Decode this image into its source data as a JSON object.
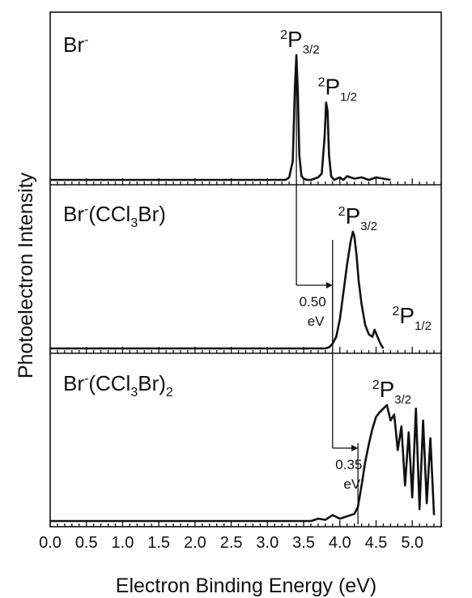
{
  "chart_data": {
    "type": "line",
    "xlabel": "Electron Binding Energy (eV)",
    "ylabel": "Photoelectron Intensity",
    "xlim": [
      0.0,
      5.4
    ],
    "x_ticks": [
      "0.0",
      "0.5",
      "1.0",
      "1.5",
      "2.0",
      "2.5",
      "3.0",
      "3.5",
      "4.0",
      "4.5",
      "5.0"
    ],
    "panels": [
      {
        "label": {
          "pre": "Br",
          "sup": "-",
          "post": ""
        },
        "series": {
          "x": [
            0.0,
            3.25,
            3.3,
            3.35,
            3.38,
            3.4,
            3.42,
            3.44,
            3.47,
            3.5,
            3.55,
            3.6,
            3.65,
            3.7,
            3.75,
            3.79,
            3.81,
            3.83,
            3.85,
            3.88,
            3.92,
            4.0,
            4.05,
            4.1,
            4.2,
            4.3,
            4.4,
            4.5,
            4.6,
            4.7
          ],
          "y": [
            0.0,
            0.0,
            0.02,
            0.15,
            0.75,
            1.0,
            0.7,
            0.2,
            0.03,
            0.01,
            0.0,
            0.0,
            0.01,
            0.02,
            0.05,
            0.35,
            0.62,
            0.55,
            0.2,
            0.03,
            0.0,
            0.02,
            0.0,
            0.03,
            0.01,
            0.02,
            0.0,
            0.02,
            0.01,
            0.0
          ],
          "ymax": 1.0
        },
        "peaks": [
          {
            "x": 3.4,
            "y": 1.0,
            "num": "2",
            "sym": "P",
            "sub": "3/2"
          },
          {
            "x": 3.83,
            "y": 0.62,
            "num": "2",
            "sym": "P",
            "sub": "1/2"
          }
        ]
      },
      {
        "label": {
          "pre": "Br",
          "sup": "-",
          "post": "(CCl",
          "sub": "3",
          "tail": "Br)"
        },
        "series": {
          "x": [
            0.0,
            3.8,
            3.85,
            3.9,
            3.95,
            4.0,
            4.05,
            4.1,
            4.15,
            4.18,
            4.2,
            4.23,
            4.26,
            4.3,
            4.35,
            4.4,
            4.45,
            4.48,
            4.52,
            4.56,
            4.6
          ],
          "y": [
            0.0,
            0.0,
            0.01,
            0.04,
            0.1,
            0.25,
            0.48,
            0.72,
            0.92,
            1.0,
            0.96,
            0.8,
            0.58,
            0.38,
            0.2,
            0.12,
            0.1,
            0.16,
            0.1,
            0.04,
            0.0
          ],
          "ymax": 1.0
        },
        "peaks": [
          {
            "x": 4.2,
            "y": 1.0,
            "num": "2",
            "sym": "P",
            "sub": "3/2"
          },
          {
            "x": 4.5,
            "y": 0.16,
            "num": "2",
            "sym": "P",
            "sub": "1/2"
          }
        ],
        "shift": {
          "from": 3.4,
          "to": 3.9,
          "value": "0.50",
          "unit": "eV"
        }
      },
      {
        "label": {
          "pre": "Br",
          "sup": "-",
          "post": "(CCl",
          "sub": "3",
          "tail": "Br)",
          "sub2": "2"
        },
        "series": {
          "x": [
            0.0,
            3.6,
            3.7,
            3.8,
            3.9,
            4.0,
            4.1,
            4.2,
            4.25,
            4.3,
            4.35,
            4.4,
            4.45,
            4.5,
            4.55,
            4.6,
            4.65,
            4.7,
            4.75,
            4.8,
            4.85,
            4.9,
            4.95,
            5.0,
            5.05,
            5.1,
            5.15,
            5.2,
            5.25,
            5.3
          ],
          "y": [
            0.0,
            0.0,
            0.02,
            0.01,
            0.05,
            0.02,
            0.04,
            0.06,
            0.12,
            0.3,
            0.5,
            0.65,
            0.78,
            0.88,
            0.92,
            0.95,
            0.98,
            0.85,
            0.9,
            0.6,
            0.8,
            0.3,
            0.75,
            0.2,
            0.95,
            0.1,
            0.85,
            0.15,
            0.7,
            0.05
          ],
          "ymax": 1.0
        },
        "peaks": [
          {
            "x": 4.67,
            "y": 0.98,
            "num": "2",
            "sym": "P",
            "sub": "3/2"
          }
        ],
        "shift": {
          "from": 3.9,
          "to": 4.25,
          "value": "0.35",
          "unit": "eV"
        }
      }
    ]
  }
}
